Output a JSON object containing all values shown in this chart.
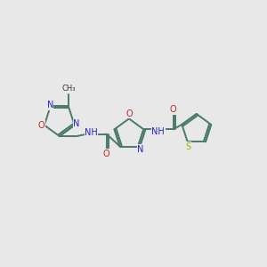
{
  "bg_color": "#e8e8e8",
  "bond_color": "#4a7a6a",
  "n_color": "#2222cc",
  "o_color": "#cc2222",
  "s_color": "#aaaa00",
  "c_color": "#333333",
  "figsize": [
    3.0,
    3.0
  ],
  "dpi": 100,
  "lw": 1.4,
  "fs": 7.0,
  "xlim": [
    0,
    10
  ],
  "ylim": [
    0,
    10
  ]
}
